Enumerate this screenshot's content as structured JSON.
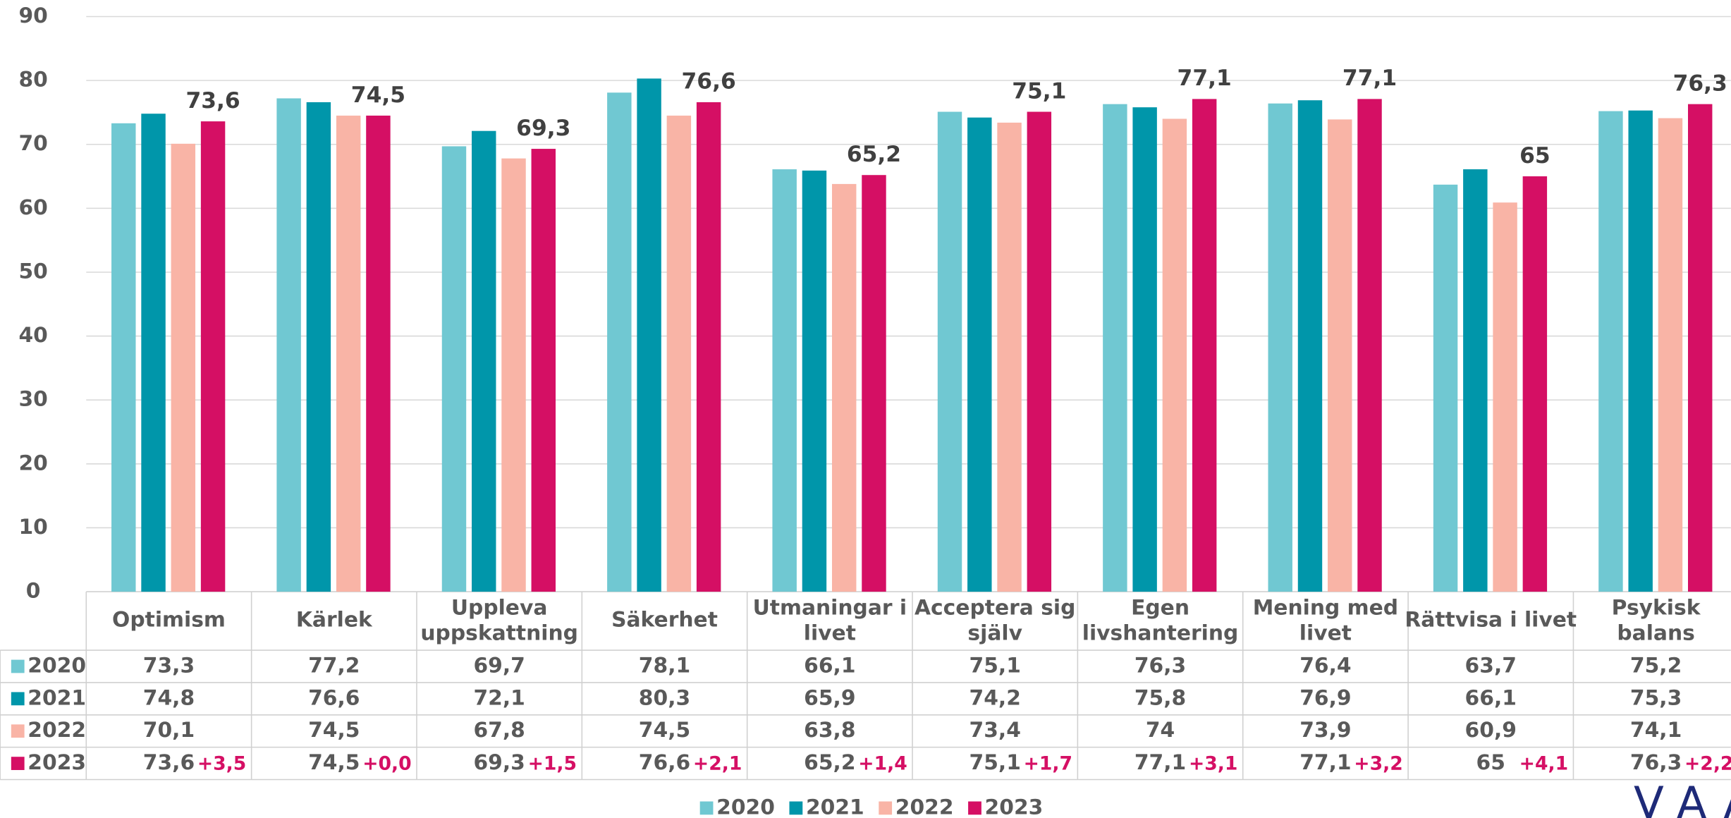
{
  "chart_data": {
    "type": "bar",
    "categories": [
      "Optimism",
      "Kärlek",
      "Uppleva\nuppskattning",
      "Säkerhet",
      "Utmaningar i\nlivet",
      "Acceptera sig\nsjälv",
      "Egen\nlivshantering",
      "Mening med\nlivet",
      "Rättvisa i livet",
      "Psykisk\nbalans"
    ],
    "series": [
      {
        "name": "2020",
        "color": "#70c8d2",
        "values": [
          73.3,
          77.2,
          69.7,
          78.1,
          66.1,
          75.1,
          76.3,
          76.4,
          63.7,
          75.2
        ],
        "value_labels": [
          "73,3",
          "77,2",
          "69,7",
          "78,1",
          "66,1",
          "75,1",
          "76,3",
          "76,4",
          "63,7",
          "75,2"
        ]
      },
      {
        "name": "2021",
        "color": "#0096aa",
        "values": [
          74.8,
          76.6,
          72.1,
          80.3,
          65.9,
          74.2,
          75.8,
          76.9,
          66.1,
          75.3
        ],
        "value_labels": [
          "74,8",
          "76,6",
          "72,1",
          "80,3",
          "65,9",
          "74,2",
          "75,8",
          "76,9",
          "66,1",
          "75,3"
        ]
      },
      {
        "name": "2022",
        "color": "#f9b4a6",
        "values": [
          70.1,
          74.5,
          67.8,
          74.5,
          63.8,
          73.4,
          74,
          73.9,
          60.9,
          74.1
        ],
        "value_labels": [
          "70,1",
          "74,5",
          "67,8",
          "74,5",
          "63,8",
          "73,4",
          "74",
          "73,9",
          "60,9",
          "74,1"
        ]
      },
      {
        "name": "2023",
        "color": "#d50f64",
        "values": [
          73.6,
          74.5,
          69.3,
          76.6,
          65.2,
          75.1,
          77.1,
          77.1,
          65,
          76.3
        ],
        "value_labels": [
          "73,6",
          "74,5",
          "69,3",
          "76,6",
          "65,2",
          "75,1",
          "77,1",
          "77,1",
          "65",
          "76,3"
        ]
      }
    ],
    "changes": {
      "values": [
        3.5,
        0.0,
        1.5,
        2.1,
        1.4,
        1.7,
        3.1,
        3.2,
        4.1,
        2.2
      ],
      "value_labels": [
        "+3,5",
        "+0,0",
        "+1,5",
        "+2,1",
        "+1,4",
        "+1,7",
        "+3,1",
        "+3,2",
        "+4,1",
        "+2,2"
      ],
      "color": "#d50f64"
    },
    "ylim": [
      0,
      90
    ],
    "yticks": [
      0,
      10,
      20,
      30,
      40,
      50,
      60,
      70,
      80,
      90
    ],
    "grid": true,
    "legend": "bottom",
    "logo": "VAASA"
  }
}
